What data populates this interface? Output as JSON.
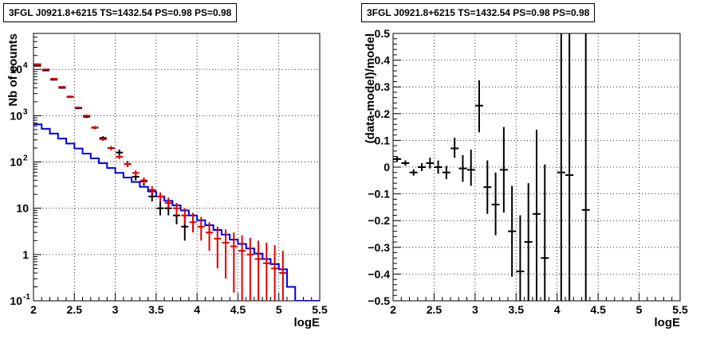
{
  "chart_data": [
    {
      "type": "histogram",
      "title": "3FGL J0921.8+6215 TS=1432.54 PS=0.98 PS=0.98",
      "xlabel": "logE",
      "ylabel": "Nb of counts",
      "xlim": [
        2,
        5.5
      ],
      "ylim": [
        0.1,
        60000
      ],
      "log_y": true,
      "grid": true,
      "x_ticks": [
        "2",
        "2.5",
        "3",
        "3.5",
        "4",
        "4.5",
        "5",
        "5.5"
      ],
      "y_ticks": [
        {
          "value": 0.1,
          "label": "10",
          "exp": "-1"
        },
        {
          "value": 1,
          "label": "1",
          "exp": ""
        },
        {
          "value": 10,
          "label": "10",
          "exp": ""
        },
        {
          "value": 100,
          "label": "10",
          "exp": "2"
        },
        {
          "value": 1000,
          "label": "10",
          "exp": "3"
        },
        {
          "value": 10000,
          "label": "10",
          "exp": "4"
        }
      ],
      "bin_edges": [
        2.0,
        2.1,
        2.2,
        2.3,
        2.4,
        2.5,
        2.6,
        2.7,
        2.8,
        2.9,
        3.0,
        3.1,
        3.2,
        3.3,
        3.4,
        3.5,
        3.6,
        3.7,
        3.8,
        3.9,
        4.0,
        4.1,
        4.2,
        4.3,
        4.4,
        4.5,
        4.6,
        4.7,
        4.8,
        4.9,
        5.0,
        5.1,
        5.2,
        5.3,
        5.4,
        5.5
      ],
      "series": [
        {
          "name": "",
          "color": "#0000e0",
          "style": "step",
          "values": [
            650,
            520,
            410,
            320,
            250,
            195,
            152,
            120,
            94,
            74,
            58,
            46,
            37,
            29,
            23,
            18,
            14.5,
            11.5,
            9.0,
            7.0,
            5.5,
            4.3,
            3.4,
            2.7,
            2.1,
            1.7,
            1.35,
            1.05,
            0.8,
            0.62,
            0.48,
            0.2,
            0.1,
            0.1,
            0.1
          ]
        },
        {
          "name": "",
          "color": "#000000",
          "style": "errorbar",
          "points": [
            {
              "x": 2.05,
              "y": 12000,
              "lo": 11800,
              "hi": 12200
            },
            {
              "x": 2.15,
              "y": 9500,
              "lo": 9300,
              "hi": 9700
            },
            {
              "x": 2.25,
              "y": 6000,
              "lo": 5850,
              "hi": 6150
            },
            {
              "x": 2.35,
              "y": 4000,
              "lo": 3880,
              "hi": 4120
            },
            {
              "x": 2.45,
              "y": 2550,
              "lo": 2450,
              "hi": 2650
            },
            {
              "x": 2.55,
              "y": 1450,
              "lo": 1380,
              "hi": 1520
            },
            {
              "x": 2.65,
              "y": 950,
              "lo": 890,
              "hi": 1010
            },
            {
              "x": 2.75,
              "y": 550,
              "lo": 510,
              "hi": 590
            },
            {
              "x": 2.85,
              "y": 330,
              "lo": 300,
              "hi": 360
            },
            {
              "x": 2.95,
              "y": 200,
              "lo": 180,
              "hi": 220
            },
            {
              "x": 3.05,
              "y": 160,
              "lo": 140,
              "hi": 185
            },
            {
              "x": 3.15,
              "y": 90,
              "lo": 78,
              "hi": 104
            },
            {
              "x": 3.25,
              "y": 48,
              "lo": 40,
              "hi": 58
            },
            {
              "x": 3.35,
              "y": 38,
              "lo": 31,
              "hi": 46
            },
            {
              "x": 3.45,
              "y": 18,
              "lo": 14,
              "hi": 24
            },
            {
              "x": 3.55,
              "y": 10,
              "lo": 7,
              "hi": 14
            },
            {
              "x": 3.65,
              "y": 10,
              "lo": 7,
              "hi": 14
            },
            {
              "x": 3.75,
              "y": 7,
              "lo": 4.5,
              "hi": 10
            },
            {
              "x": 3.85,
              "y": 4,
              "lo": 2,
              "hi": 7
            }
          ]
        },
        {
          "name": "",
          "color": "#e00000",
          "style": "errorbar",
          "points": [
            {
              "x": 2.05,
              "y": 13000,
              "lo": 12800,
              "hi": 13200
            },
            {
              "x": 2.15,
              "y": 10000,
              "lo": 9800,
              "hi": 10200
            },
            {
              "x": 2.25,
              "y": 6300,
              "lo": 6150,
              "hi": 6450
            },
            {
              "x": 2.35,
              "y": 4200,
              "lo": 4080,
              "hi": 4320
            },
            {
              "x": 2.45,
              "y": 2600,
              "lo": 2500,
              "hi": 2700
            },
            {
              "x": 2.55,
              "y": 1500,
              "lo": 1430,
              "hi": 1570
            },
            {
              "x": 2.65,
              "y": 1000,
              "lo": 940,
              "hi": 1060
            },
            {
              "x": 2.75,
              "y": 560,
              "lo": 520,
              "hi": 600
            },
            {
              "x": 2.85,
              "y": 310,
              "lo": 285,
              "hi": 335
            },
            {
              "x": 2.95,
              "y": 200,
              "lo": 182,
              "hi": 218
            },
            {
              "x": 3.05,
              "y": 130,
              "lo": 115,
              "hi": 145
            },
            {
              "x": 3.15,
              "y": 90,
              "lo": 80,
              "hi": 100
            },
            {
              "x": 3.25,
              "y": 58,
              "lo": 50,
              "hi": 66
            },
            {
              "x": 3.35,
              "y": 40,
              "lo": 34,
              "hi": 46
            },
            {
              "x": 3.45,
              "y": 25,
              "lo": 21,
              "hi": 30
            },
            {
              "x": 3.55,
              "y": 18,
              "lo": 14,
              "hi": 22
            },
            {
              "x": 3.65,
              "y": 13,
              "lo": 10,
              "hi": 17
            },
            {
              "x": 3.75,
              "y": 10,
              "lo": 7,
              "hi": 13
            },
            {
              "x": 3.85,
              "y": 7,
              "lo": 4.5,
              "hi": 10
            },
            {
              "x": 3.95,
              "y": 5,
              "lo": 3,
              "hi": 8
            },
            {
              "x": 4.05,
              "y": 4,
              "lo": 2,
              "hi": 6.5
            },
            {
              "x": 4.15,
              "y": 3,
              "lo": 1.2,
              "hi": 5
            },
            {
              "x": 4.25,
              "y": 2.2,
              "lo": 0.5,
              "hi": 4
            },
            {
              "x": 4.35,
              "y": 1.8,
              "lo": 0.3,
              "hi": 3.5
            },
            {
              "x": 4.45,
              "y": 1.5,
              "lo": 0.15,
              "hi": 3.0
            },
            {
              "x": 4.55,
              "y": 1.2,
              "lo": 0.1,
              "hi": 2.6
            },
            {
              "x": 4.65,
              "y": 1.0,
              "lo": 0.1,
              "hi": 2.3
            },
            {
              "x": 4.75,
              "y": 0.8,
              "lo": 0.1,
              "hi": 2.0
            },
            {
              "x": 4.85,
              "y": 0.65,
              "lo": 0.1,
              "hi": 1.8
            },
            {
              "x": 4.95,
              "y": 0.5,
              "lo": 0.1,
              "hi": 1.6
            },
            {
              "x": 5.05,
              "y": 0.4,
              "lo": 0.1,
              "hi": 1.2
            }
          ]
        }
      ]
    },
    {
      "type": "errorbar",
      "title": "3FGL J0921.8+6215 TS=1432.54 PS=0.98 PS=0.98",
      "xlabel": "logE",
      "ylabel": "(data-model)/model",
      "xlim": [
        2,
        5.5
      ],
      "ylim": [
        -0.5,
        0.5
      ],
      "grid": true,
      "x_ticks": [
        "2",
        "2.5",
        "3",
        "3.5",
        "4",
        "4.5",
        "5",
        "5.5"
      ],
      "y_ticks": [
        "-0.5",
        "-0.4",
        "-0.3",
        "-0.2",
        "-0.1",
        "0",
        "0.1",
        "0.2",
        "0.3",
        "0.4",
        "0.5"
      ],
      "series": [
        {
          "name": "",
          "color": "#000000",
          "points": [
            {
              "x": 2.05,
              "y": 0.03,
              "lo": 0.02,
              "hi": 0.04
            },
            {
              "x": 2.15,
              "y": 0.015,
              "lo": 0.005,
              "hi": 0.025
            },
            {
              "x": 2.25,
              "y": -0.02,
              "lo": -0.032,
              "hi": -0.008
            },
            {
              "x": 2.35,
              "y": 0.0,
              "lo": -0.015,
              "hi": 0.015
            },
            {
              "x": 2.45,
              "y": 0.015,
              "lo": -0.005,
              "hi": 0.035
            },
            {
              "x": 2.55,
              "y": 0.0,
              "lo": -0.025,
              "hi": 0.025
            },
            {
              "x": 2.65,
              "y": -0.02,
              "lo": -0.045,
              "hi": 0.005
            },
            {
              "x": 2.75,
              "y": 0.07,
              "lo": 0.035,
              "hi": 0.11
            },
            {
              "x": 2.85,
              "y": -0.005,
              "lo": -0.055,
              "hi": 0.045
            },
            {
              "x": 2.95,
              "y": -0.01,
              "lo": -0.07,
              "hi": 0.065
            },
            {
              "x": 3.05,
              "y": 0.23,
              "lo": 0.13,
              "hi": 0.325
            },
            {
              "x": 3.15,
              "y": -0.075,
              "lo": -0.175,
              "hi": 0.025
            },
            {
              "x": 3.25,
              "y": -0.14,
              "lo": -0.255,
              "hi": -0.02
            },
            {
              "x": 3.35,
              "y": -0.01,
              "lo": -0.17,
              "hi": 0.15
            },
            {
              "x": 3.45,
              "y": -0.24,
              "lo": -0.41,
              "hi": -0.07
            },
            {
              "x": 3.55,
              "y": -0.39,
              "lo": -0.5,
              "hi": -0.18
            },
            {
              "x": 3.65,
              "y": -0.28,
              "lo": -0.5,
              "hi": -0.06
            },
            {
              "x": 3.75,
              "y": -0.175,
              "lo": -0.5,
              "hi": 0.14
            },
            {
              "x": 3.85,
              "y": -0.34,
              "lo": -0.5,
              "hi": 0.01
            },
            {
              "x": 4.05,
              "y": -0.02,
              "lo": -0.5,
              "hi": 0.5
            },
            {
              "x": 4.15,
              "y": -0.03,
              "lo": -0.5,
              "hi": 0.5
            },
            {
              "x": 4.35,
              "y": -0.16,
              "lo": -0.5,
              "hi": 0.5
            }
          ]
        }
      ]
    }
  ]
}
